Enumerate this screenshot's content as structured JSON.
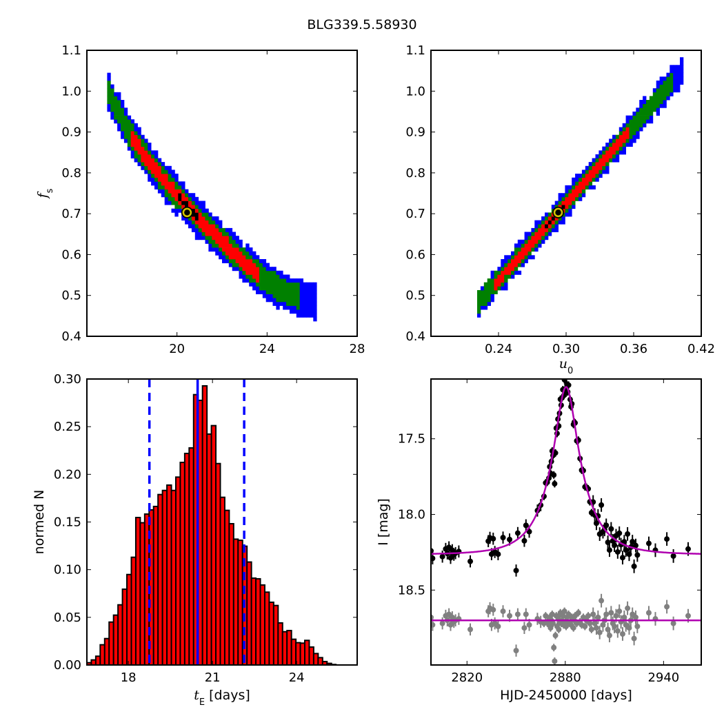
{
  "title": "BLG339.5.58930",
  "colors": {
    "level_3": "#0000ff",
    "level_2": "#008000",
    "level_1": "#ff0000",
    "best": "#000000",
    "marker": "#d4c400",
    "hist_bar": "#ff0000",
    "vline": "#0000ff",
    "data": "#000000",
    "residual": "#808080",
    "model": "#b000b0"
  },
  "chart_data": [
    {
      "type": "heatmap",
      "name": "fs-vs-tE",
      "xlabel": {
        "main": "",
        "sub": "",
        "rest": ""
      },
      "ylabel": {
        "main": "f",
        "sub": "s",
        "rest": ""
      },
      "xlim": [
        16,
        28
      ],
      "ylim": [
        0.4,
        1.1
      ],
      "xticks": [
        {
          "v": 20,
          "label": "20"
        },
        {
          "v": 24,
          "label": "24"
        },
        {
          "v": 28,
          "label": "28"
        }
      ],
      "yticks": [
        {
          "v": 0.4,
          "label": "0.4"
        },
        {
          "v": 0.5,
          "label": "0.5"
        },
        {
          "v": 0.6,
          "label": "0.6"
        },
        {
          "v": 0.7,
          "label": "0.7"
        },
        {
          "v": 0.8,
          "label": "0.8"
        },
        {
          "v": 0.9,
          "label": "0.9"
        },
        {
          "v": 1.0,
          "label": "1.0"
        },
        {
          "v": 1.1,
          "label": "1.1"
        }
      ],
      "cell": [
        0.15,
        0.0095
      ],
      "ridge": {
        "x": [
          16.9,
          17.0,
          18.0,
          19.0,
          20.0,
          21.0,
          22.0,
          23.0,
          24.0,
          25.0,
          26.2
        ],
        "y": [
          1.03,
          0.99,
          0.886,
          0.81,
          0.745,
          0.685,
          0.633,
          0.58,
          0.532,
          0.505,
          0.487
        ]
      },
      "levels": [
        {
          "name": "3-sigma",
          "color_key": "level_3",
          "halfwidth": 0.045,
          "xrange": [
            16.9,
            26.2
          ]
        },
        {
          "name": "2-sigma",
          "color_key": "level_2",
          "halfwidth": 0.031,
          "xrange": [
            16.95,
            25.4
          ]
        },
        {
          "name": "1-sigma",
          "color_key": "level_1",
          "halfwidth": 0.018,
          "xrange": [
            17.9,
            23.7
          ]
        },
        {
          "name": "best",
          "color_key": "best",
          "halfwidth": 0.008,
          "xrange": [
            20.0,
            21.0
          ]
        }
      ],
      "best_fit": {
        "x": 20.45,
        "y": 0.703
      }
    },
    {
      "type": "heatmap",
      "name": "fs-vs-u0",
      "xlabel": {
        "main": "u",
        "sub": "0",
        "rest": ""
      },
      "ylabel": {
        "main": "",
        "sub": "",
        "rest": ""
      },
      "xlim": [
        0.18,
        0.42
      ],
      "ylim": [
        0.4,
        1.1
      ],
      "xticks": [
        {
          "v": 0.24,
          "label": "0.24"
        },
        {
          "v": 0.3,
          "label": "0.30"
        },
        {
          "v": 0.36,
          "label": "0.36"
        },
        {
          "v": 0.42,
          "label": "0.42"
        }
      ],
      "yticks": [
        {
          "v": 0.4,
          "label": "0.4"
        },
        {
          "v": 0.5,
          "label": "0.5"
        },
        {
          "v": 0.6,
          "label": "0.6"
        },
        {
          "v": 0.7,
          "label": "0.7"
        },
        {
          "v": 0.8,
          "label": "0.8"
        },
        {
          "v": 0.9,
          "label": "0.9"
        },
        {
          "v": 1.0,
          "label": "1.0"
        },
        {
          "v": 1.1,
          "label": "1.1"
        }
      ],
      "cell": [
        0.003,
        0.0095
      ],
      "ridge": {
        "x": [
          0.221,
          0.293,
          0.405
        ],
        "y": [
          0.479,
          0.703,
          1.056
        ]
      },
      "levels": [
        {
          "name": "3-sigma",
          "color_key": "level_3",
          "halfwidth": 0.034,
          "xrange": [
            0.221,
            0.405
          ]
        },
        {
          "name": "2-sigma",
          "color_key": "level_2",
          "halfwidth": 0.024,
          "xrange": [
            0.222,
            0.395
          ]
        },
        {
          "name": "1-sigma",
          "color_key": "level_1",
          "halfwidth": 0.014,
          "xrange": [
            0.235,
            0.355
          ]
        },
        {
          "name": "best",
          "color_key": "best",
          "halfwidth": 0.006,
          "xrange": [
            0.28,
            0.3
          ]
        }
      ],
      "best_fit": {
        "x": 0.293,
        "y": 0.703
      }
    },
    {
      "type": "bar",
      "name": "tE-histogram",
      "xlabel": {
        "main": "t",
        "sub": "E",
        "rest": " [days]"
      },
      "ylabel": {
        "main": "normed N",
        "sub": "",
        "rest": ""
      },
      "xlim": [
        16.52,
        26.16
      ],
      "ylim": [
        0,
        0.3
      ],
      "xticks": [
        {
          "v": 18,
          "label": "18"
        },
        {
          "v": 21,
          "label": "21"
        },
        {
          "v": 24,
          "label": "24"
        }
      ],
      "yticks": [
        {
          "v": 0,
          "label": "0.00"
        },
        {
          "v": 0.05,
          "label": "0.05"
        },
        {
          "v": 0.1,
          "label": "0.10"
        },
        {
          "v": 0.15,
          "label": "0.15"
        },
        {
          "v": 0.2,
          "label": "0.20"
        },
        {
          "v": 0.25,
          "label": "0.25"
        },
        {
          "v": 0.3,
          "label": "0.30"
        }
      ],
      "bin_start": 16.52,
      "bin_width": 0.1586,
      "values": [
        0.0024,
        0.0053,
        0.0092,
        0.0212,
        0.0277,
        0.045,
        0.0523,
        0.0631,
        0.0795,
        0.0949,
        0.113,
        0.1547,
        0.1492,
        0.1583,
        0.1627,
        0.1663,
        0.1788,
        0.1831,
        0.1887,
        0.1831,
        0.1971,
        0.2125,
        0.2219,
        0.2277,
        0.2836,
        0.2776,
        0.2928,
        0.2422,
        0.2511,
        0.2113,
        0.1759,
        0.1622,
        0.1482,
        0.132,
        0.1308,
        0.1246,
        0.108,
        0.0911,
        0.0904,
        0.0839,
        0.0764,
        0.0658,
        0.0624,
        0.0441,
        0.0349,
        0.0361,
        0.027,
        0.0234,
        0.0229,
        0.0258,
        0.0188,
        0.012,
        0.0077,
        0.0036,
        0.0017,
        0.0005
      ],
      "vlines": [
        {
          "x": 18.75,
          "style": "dashed"
        },
        {
          "x": 20.47,
          "style": "solid"
        },
        {
          "x": 22.13,
          "style": "dashed"
        }
      ]
    },
    {
      "type": "scatter",
      "name": "light-curve",
      "xlabel": {
        "main": "HJD-2450000 [days]",
        "sub": "",
        "rest": ""
      },
      "ylabel": {
        "main": "I [mag]",
        "sub": "",
        "rest": ""
      },
      "xlim": [
        2798,
        2963
      ],
      "ylim": [
        18.995,
        17.105
      ],
      "xticks": [
        {
          "v": 2820,
          "label": "2820"
        },
        {
          "v": 2880,
          "label": "2880"
        },
        {
          "v": 2940,
          "label": "2940"
        }
      ],
      "yticks": [
        {
          "v": 17.5,
          "label": "17.5"
        },
        {
          "v": 18.0,
          "label": "18.0"
        },
        {
          "v": 18.5,
          "label": "18.5"
        }
      ],
      "model": {
        "t0": 2880.5,
        "tE": 20.45,
        "u0": 0.293,
        "fs": 0.703,
        "I_base": 18.265
      },
      "residual_offset": 18.7,
      "observations": [
        {
          "err": 0.04,
          "t": [
            2798,
            2799,
            2805,
            2807,
            2808,
            2809,
            2810,
            2811,
            2812,
            2813,
            2815,
            2822,
            2833,
            2834,
            2835,
            2836,
            2837,
            2839,
            2842,
            2846,
            2850,
            2851,
            2855,
            2856,
            2858,
            2863,
            2865
          ],
          "resid": [
            -0.02,
            0.03,
            0.02,
            -0.03,
            0.0,
            -0.04,
            0.03,
            -0.02,
            0.01,
            0.0,
            -0.01,
            0.06,
            -0.06,
            -0.08,
            0.03,
            -0.07,
            0.02,
            0.04,
            -0.06,
            -0.03,
            0.2,
            -0.04,
            0.05,
            -0.04,
            0.03,
            -0.01,
            0.01
          ]
        },
        {
          "err": 0.025,
          "t": [
            2867,
            2868,
            2869,
            2870,
            2870.5,
            2871,
            2871.5,
            2872,
            2872.5,
            2873,
            2873.5,
            2874,
            2874.5,
            2875,
            2875.5,
            2876,
            2876.5,
            2877,
            2877.5,
            2878,
            2878.5,
            2879,
            2879.5,
            2880,
            2880.5,
            2881,
            2881.5,
            2882,
            2883,
            2883.5,
            2884,
            2885,
            2885.5,
            2886,
            2887,
            2888,
            2889,
            2890,
            2891,
            2892,
            2893,
            2894,
            2895,
            2896
          ],
          "resid": [
            0.02,
            -0.03,
            0.01,
            0.03,
            -0.02,
            0.05,
            0.0,
            -0.04,
            0.02,
            0.18,
            0.27,
            0.1,
            -0.03,
            0.04,
            -0.02,
            0.06,
            0.01,
            -0.05,
            0.02,
            0.0,
            -0.03,
            0.03,
            -0.06,
            0.01,
            0.04,
            -0.02,
            0.02,
            -0.04,
            0.01,
            0.03,
            -0.02,
            0.05,
            0.0,
            -0.03,
            0.02,
            -0.05,
            0.01,
            0.03,
            -0.02,
            0.04,
            0.0,
            -0.03,
            0.02,
            0.06
          ]
        },
        {
          "err": 0.045,
          "t": [
            2897,
            2898,
            2899,
            2900,
            2901,
            2902,
            2903,
            2904,
            2905,
            2906,
            2907,
            2908,
            2909,
            2910,
            2911,
            2912,
            2913,
            2914,
            2915,
            2916,
            2917,
            2918,
            2919,
            2920,
            2921,
            2922,
            2923,
            2924,
            2931,
            2935,
            2942,
            2946,
            2955
          ],
          "resid": [
            -0.04,
            0.02,
            0.05,
            -0.02,
            0.08,
            -0.13,
            0.03,
            0.0,
            -0.04,
            0.06,
            0.1,
            -0.05,
            0.02,
            0.04,
            -0.03,
            0.07,
            -0.06,
            0.01,
            0.09,
            -0.02,
            0.03,
            -0.08,
            0.05,
            0.0,
            -0.04,
            0.12,
            -0.02,
            0.04,
            -0.05,
            -0.01,
            -0.09,
            0.02,
            -0.03
          ]
        }
      ]
    }
  ]
}
